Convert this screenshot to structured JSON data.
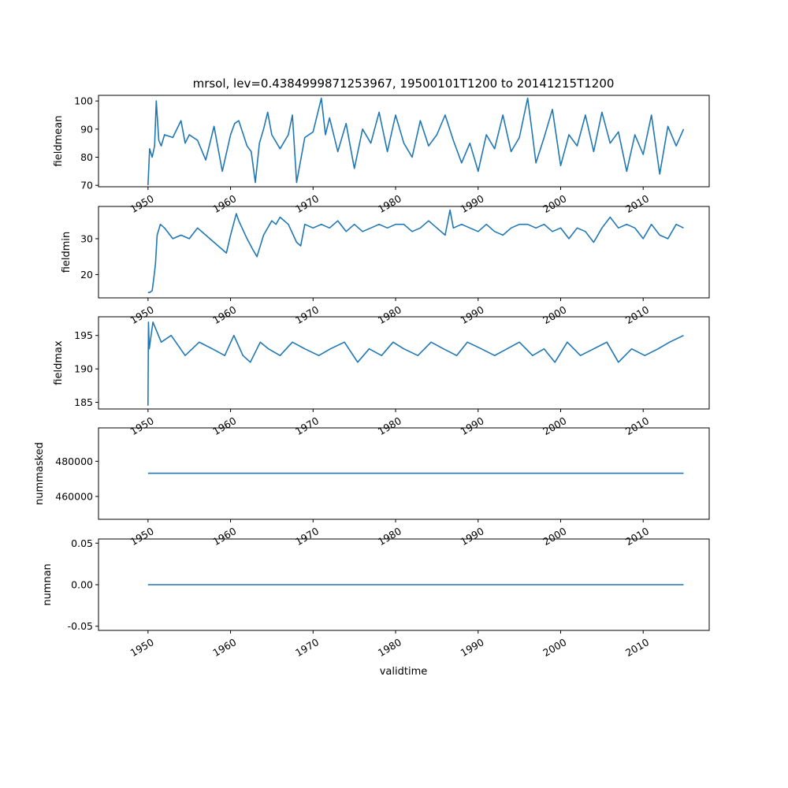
{
  "chart_data": {
    "type": "line",
    "title": "mrsol, lev=0.4384999871253967, 19500101T1200 to 20141215T1200",
    "xlabel": "validtime",
    "xlim": [
      1944,
      2018
    ],
    "x_ticks": [
      "1950",
      "1960",
      "1970",
      "1980",
      "1990",
      "2000",
      "2010"
    ],
    "x_tick_years": [
      1950,
      1960,
      1970,
      1980,
      1990,
      2000,
      2010
    ],
    "grid": false,
    "color": "#1f77b4",
    "panels": [
      {
        "ylabel": "fieldmean",
        "ylim": [
          69.5,
          102
        ],
        "yticks": [
          70,
          80,
          90,
          100
        ],
        "x": [
          1950.0,
          1950.2,
          1950.5,
          1950.8,
          1951.0,
          1951.3,
          1951.6,
          1952.0,
          1953.0,
          1954.0,
          1954.5,
          1955.0,
          1956.0,
          1957.0,
          1957.5,
          1958.0,
          1959.0,
          1960.0,
          1960.5,
          1961.0,
          1962.0,
          1962.5,
          1963.0,
          1963.5,
          1964.0,
          1964.5,
          1965.0,
          1966.0,
          1967.0,
          1967.5,
          1968.0,
          1969.0,
          1970.0,
          1971.0,
          1971.5,
          1972.0,
          1973.0,
          1974.0,
          1975.0,
          1976.0,
          1977.0,
          1978.0,
          1979.0,
          1980.0,
          1981.0,
          1982.0,
          1983.0,
          1984.0,
          1985.0,
          1986.0,
          1987.0,
          1988.0,
          1989.0,
          1990.0,
          1991.0,
          1992.0,
          1993.0,
          1994.0,
          1995.0,
          1996.0,
          1996.5,
          1997.0,
          1998.0,
          1999.0,
          2000.0,
          2001.0,
          2002.0,
          2003.0,
          2004.0,
          2005.0,
          2006.0,
          2007.0,
          2008.0,
          2009.0,
          2010.0,
          2011.0,
          2012.0,
          2013.0,
          2014.0,
          2014.9
        ],
        "values": [
          70,
          83,
          80,
          84,
          100,
          86,
          84,
          88,
          87,
          93,
          85,
          88,
          86,
          79,
          85,
          91,
          75,
          88,
          92,
          93,
          84,
          82,
          71,
          85,
          90,
          96,
          88,
          83,
          88,
          95,
          71,
          87,
          89,
          101,
          88,
          94,
          82,
          92,
          76,
          90,
          85,
          96,
          82,
          95,
          85,
          80,
          93,
          84,
          88,
          95,
          86,
          78,
          85,
          75,
          88,
          83,
          95,
          82,
          87,
          101,
          90,
          78,
          87,
          97,
          77,
          88,
          84,
          95,
          82,
          96,
          85,
          89,
          75,
          88,
          81,
          95,
          74,
          91,
          84,
          90
        ]
      },
      {
        "ylabel": "fieldmin",
        "ylim": [
          13.5,
          39
        ],
        "yticks": [
          20,
          30
        ],
        "x": [
          1950.0,
          1950.2,
          1950.5,
          1950.7,
          1950.9,
          1951.1,
          1951.5,
          1952.0,
          1953.0,
          1954.0,
          1955.0,
          1956.0,
          1957.0,
          1958.0,
          1959.0,
          1959.5,
          1960.0,
          1960.7,
          1961.0,
          1962.0,
          1962.7,
          1963.2,
          1964.0,
          1965.0,
          1965.5,
          1966.0,
          1967.0,
          1968.0,
          1968.5,
          1969.0,
          1970.0,
          1971.0,
          1972.0,
          1973.0,
          1974.0,
          1975.0,
          1976.0,
          1977.0,
          1978.0,
          1979.0,
          1980.0,
          1981.0,
          1982.0,
          1983.0,
          1984.0,
          1985.0,
          1986.0,
          1986.6,
          1987.0,
          1988.0,
          1989.0,
          1990.0,
          1991.0,
          1992.0,
          1993.0,
          1994.0,
          1995.0,
          1996.0,
          1997.0,
          1998.0,
          1999.0,
          2000.0,
          2001.0,
          2002.0,
          2003.0,
          2004.0,
          2005.0,
          2006.0,
          2007.0,
          2008.0,
          2009.0,
          2010.0,
          2011.0,
          2012.0,
          2013.0,
          2014.0,
          2014.9
        ],
        "values": [
          15,
          15,
          15.5,
          19,
          23,
          31,
          34,
          33,
          30,
          31,
          30,
          33,
          31,
          29,
          27,
          26,
          31,
          37,
          35,
          30,
          27,
          25,
          31,
          35,
          34,
          36,
          34,
          29,
          28,
          34,
          33,
          34,
          33,
          35,
          32,
          34,
          32,
          33,
          34,
          33,
          34,
          34,
          32,
          33,
          35,
          33,
          31,
          38,
          33,
          34,
          33,
          32,
          34,
          32,
          31,
          33,
          34,
          34,
          33,
          34,
          32,
          33,
          30,
          33,
          32,
          29,
          33,
          36,
          33,
          34,
          33,
          30,
          34,
          31,
          30,
          34,
          33
        ]
      },
      {
        "ylabel": "fieldmax",
        "ylim": [
          184,
          197.8
        ],
        "yticks": [
          185,
          190,
          195
        ],
        "x": [
          1950.0,
          1950.05,
          1950.15,
          1950.6,
          1951.6,
          1952.8,
          1954.5,
          1956.2,
          1957.8,
          1959.3,
          1960.4,
          1961.5,
          1962.4,
          1963.6,
          1964.6,
          1966.0,
          1967.5,
          1969.0,
          1970.7,
          1972.1,
          1973.8,
          1975.4,
          1976.8,
          1978.3,
          1979.7,
          1981.0,
          1982.7,
          1984.3,
          1985.8,
          1987.4,
          1988.7,
          1990.4,
          1992.0,
          1993.5,
          1995.0,
          1996.6,
          1998.0,
          1999.3,
          2000.8,
          2002.4,
          2004.0,
          2005.6,
          2007.0,
          2008.6,
          2010.2,
          2011.8,
          2013.2,
          2014.9
        ],
        "values": [
          184.5,
          197,
          193,
          197,
          194,
          195,
          192,
          194,
          193,
          192,
          195,
          192,
          191,
          194,
          193,
          192,
          194,
          193,
          192,
          193,
          194,
          191,
          193,
          192,
          194,
          193,
          192,
          194,
          193,
          192,
          194,
          193,
          192,
          193,
          194,
          192,
          193,
          191,
          194,
          192,
          193,
          194,
          191,
          193,
          192,
          193,
          194,
          195
        ]
      },
      {
        "ylabel": "nummasked",
        "ylim": [
          447000,
          499000
        ],
        "yticks": [
          460000,
          480000
        ],
        "x": [
          1950.0,
          2014.9
        ],
        "values": [
          473200,
          473200
        ]
      },
      {
        "ylabel": "numnan",
        "ylim": [
          -0.055,
          0.055
        ],
        "yticks": [
          -0.05,
          0.0,
          0.05
        ],
        "x": [
          1950.0,
          2014.9
        ],
        "values": [
          0.0,
          0.0
        ]
      }
    ]
  }
}
